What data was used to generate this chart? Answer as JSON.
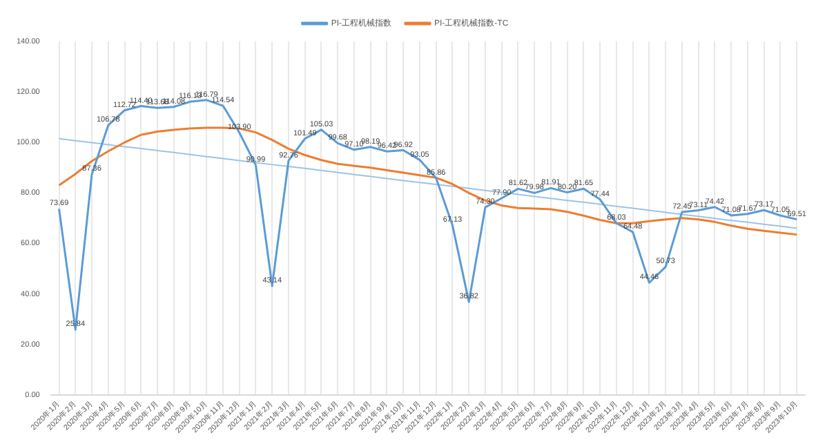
{
  "chart_data": {
    "type": "line",
    "categories": [
      "2020年1月",
      "2020年2月",
      "2020年3月",
      "2020年4月",
      "2020年5月",
      "2020年6月",
      "2020年7月",
      "2020年8月",
      "2020年9月",
      "2020年10月",
      "2020年11月",
      "2020年12月",
      "2021年1月",
      "2021年2月",
      "2021年3月",
      "2021年4月",
      "2021年5月",
      "2021年6月",
      "2021年7月",
      "2021年8月",
      "2021年9月",
      "2021年10月",
      "2021年11月",
      "2021年12月",
      "2022年1月",
      "2022年2月",
      "2022年3月",
      "2022年4月",
      "2022年5月",
      "2022年6月",
      "2022年7月",
      "2022年8月",
      "2022年9月",
      "2022年10月",
      "2022年11月",
      "2022年12月",
      "2023年1月",
      "2023年2月",
      "2023年3月",
      "2023年4月",
      "2023年5月",
      "2023年6月",
      "2023年7月",
      "2023年8月",
      "2023年9月",
      "2023年10月"
    ],
    "series": [
      {
        "name": "PI-工程机械指数",
        "color": "#5b9bd5",
        "values": [
          73.69,
          25.84,
          87.36,
          106.78,
          112.72,
          114.4,
          113.68,
          114.08,
          116.13,
          116.79,
          114.54,
          103.9,
          90.99,
          43.14,
          92.76,
          101.49,
          105.03,
          99.68,
          97.1,
          98.19,
          96.42,
          96.92,
          93.05,
          85.86,
          67.13,
          36.82,
          74.3,
          77.9,
          81.62,
          79.98,
          81.91,
          80.2,
          81.65,
          77.44,
          68.03,
          64.48,
          44.46,
          50.73,
          72.45,
          73.11,
          74.42,
          71.08,
          71.67,
          73.17,
          71.05,
          69.51
        ],
        "value_labels": [
          "73.69",
          "25.84",
          "87.36",
          "106.78",
          "112.72",
          "114.40",
          "113.68",
          "114.08",
          "116.13",
          "116.79",
          "114.54",
          "103.90",
          "90.99",
          "43.14",
          "92.76",
          "101.49",
          "105.03",
          "99.68",
          "97.10",
          "98.19",
          "96.42",
          "96.92",
          "93.05",
          "85.86",
          "67.13",
          "36.82",
          "74.30",
          "77.90",
          "81.62",
          "79.98",
          "81.91",
          "80.20",
          "81.65",
          "77.44",
          "68.03",
          "64.48",
          "44.46",
          "50.73",
          "72.45",
          "73.11",
          "74.42",
          "71.08",
          "71.67",
          "73.17",
          "71.05",
          "69.51"
        ]
      },
      {
        "name": "PI-工程机械指数-TC",
        "color": "#ed7d31",
        "values": [
          83,
          87.5,
          92.6,
          96.5,
          100,
          103,
          104.3,
          105,
          105.5,
          105.8,
          105.8,
          105.5,
          104,
          101,
          97.5,
          95,
          93,
          91.5,
          90.7,
          90,
          89,
          88,
          87,
          86,
          83.5,
          80,
          77,
          75,
          74,
          73.8,
          73.5,
          72.5,
          71,
          69.3,
          68,
          68,
          68.8,
          69.5,
          70,
          69.5,
          68.5,
          67,
          65.8,
          65,
          64.2,
          63.5
        ]
      },
      {
        "color": "#9dc3e6",
        "values": [
          101.5,
          100.7,
          99.9,
          99.1,
          98.3,
          97.6,
          96.8,
          96.0,
          95.2,
          94.4,
          93.6,
          92.8,
          92.0,
          91.2,
          90.5,
          89.7,
          88.9,
          88.1,
          87.3,
          86.5,
          85.7,
          84.9,
          84.1,
          83.4,
          82.6,
          81.8,
          81.0,
          80.2,
          79.4,
          78.6,
          77.8,
          77.0,
          76.3,
          75.5,
          74.7,
          73.9,
          73.1,
          72.3,
          71.5,
          70.7,
          69.9,
          69.1,
          68.4,
          67.6,
          66.8,
          66.0
        ]
      }
    ],
    "ylim": [
      0,
      140
    ],
    "yticks": [
      {
        "value": 0,
        "label": "0.00"
      },
      {
        "value": 20,
        "label": "20.00"
      },
      {
        "value": 40,
        "label": "40.00"
      },
      {
        "value": 60,
        "label": "60.00"
      },
      {
        "value": 80,
        "label": "80.00"
      },
      {
        "value": 100,
        "label": "100.00"
      },
      {
        "value": 120,
        "label": "120.00"
      },
      {
        "value": 140,
        "label": "140.00"
      }
    ],
    "grid": "x",
    "legend": "top",
    "marker": "none",
    "line_style": "solid"
  }
}
